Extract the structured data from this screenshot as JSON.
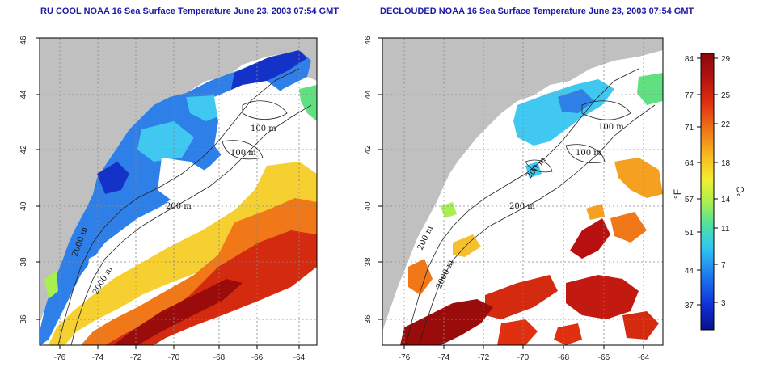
{
  "maps": [
    {
      "title": "RU COOL NOAA 16 Sea Surface Temperature June 23, 2003 07:54 GMT",
      "isobath_labels": [
        "100 m",
        "100 m",
        "200 m",
        "2000 m",
        "2000 m"
      ]
    },
    {
      "title": "DECLOUDED NOAA 16 Sea Surface Temperature June 23, 2003 07:54 GMT",
      "isobath_labels": [
        "100 m",
        "100 m",
        "200 m",
        "200 m",
        "2000 m",
        "200 m"
      ]
    }
  ],
  "axes": {
    "x_ticks": [
      "-76",
      "-74",
      "-72",
      "-70",
      "-68",
      "-66",
      "-64"
    ],
    "y_ticks": [
      "36",
      "38",
      "40",
      "42",
      "44",
      "46"
    ]
  },
  "colorbar": {
    "fahrenheit_unit": "°F",
    "celsius_unit": "°C",
    "fahrenheit_ticks": [
      "37",
      "44",
      "51",
      "57",
      "64",
      "71",
      "77",
      "84"
    ],
    "celsius_ticks": [
      "3",
      "7",
      "11",
      "14",
      "18",
      "22",
      "25",
      "29"
    ],
    "colors": [
      "#08108a",
      "#1030d8",
      "#1e7cf0",
      "#30c8f0",
      "#50e0a0",
      "#a8f050",
      "#f0f030",
      "#f8c020",
      "#f07818",
      "#e03010",
      "#b01010",
      "#8a0a0a"
    ]
  },
  "colors": {
    "land": "#c0c0c0",
    "water_no_data": "#ffffff",
    "title": "#1a1aa6"
  }
}
